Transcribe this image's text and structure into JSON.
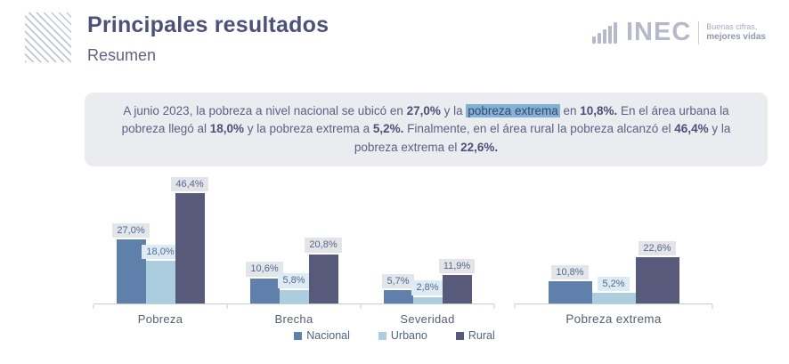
{
  "header": {
    "title": "Principales resultados",
    "subtitle": "Resumen",
    "logo": {
      "name": "INEC",
      "tagline_line1": "Buenas cifras,",
      "tagline_line2": "mejores vidas"
    }
  },
  "summary": {
    "segments": [
      {
        "text": "A junio 2023, la pobreza a nivel nacional se ubicó en ",
        "style": "normal"
      },
      {
        "text": "27,0%",
        "style": "bold"
      },
      {
        "text": " y la ",
        "style": "normal"
      },
      {
        "text": "pobreza extrema",
        "style": "highlight"
      },
      {
        "text": " en ",
        "style": "normal"
      },
      {
        "text": "10,8%.",
        "style": "bold"
      },
      {
        "text": " En el área urbana la pobreza llegó al ",
        "style": "normal"
      },
      {
        "text": "18,0%",
        "style": "bold"
      },
      {
        "text": " y la pobreza extrema a ",
        "style": "normal"
      },
      {
        "text": "5,2%.",
        "style": "bold"
      },
      {
        "text": " Finalmente, en el área rural la pobreza alcanzó el ",
        "style": "normal"
      },
      {
        "text": "46,4%",
        "style": "bold"
      },
      {
        "text": " y la pobreza extrema el ",
        "style": "normal"
      },
      {
        "text": "22,6%.",
        "style": "bold"
      }
    ]
  },
  "chart_data": {
    "type": "bar",
    "grid": false,
    "legend": [
      "Nacional",
      "Urbano",
      "Rural"
    ],
    "legend_position": "bottom",
    "value_format": "percent-comma-1dec",
    "charts": [
      {
        "name": "pobreza-brecha-severidad",
        "categories": [
          "Pobreza",
          "Brecha",
          "Severidad"
        ],
        "series": [
          {
            "name": "Nacional",
            "values": [
              27.0,
              10.6,
              5.7
            ]
          },
          {
            "name": "Urbano",
            "values": [
              18.0,
              5.8,
              2.8
            ]
          },
          {
            "name": "Rural",
            "values": [
              46.4,
              20.8,
              11.9
            ]
          }
        ],
        "ylim": [
          0,
          55
        ]
      },
      {
        "name": "pobreza-extrema",
        "categories": [
          "Pobreza extrema"
        ],
        "series": [
          {
            "name": "Nacional",
            "values": [
              10.8
            ]
          },
          {
            "name": "Urbano",
            "values": [
              5.2
            ]
          },
          {
            "name": "Rural",
            "values": [
              22.6
            ]
          }
        ],
        "ylim": [
          0,
          64
        ]
      }
    ]
  },
  "colors": {
    "nacional": "#5e80ab",
    "urbano": "#abcddd",
    "rural": "#585a7c",
    "label_bg_nacional": "#e2e5e9",
    "label_bg_urbano": "#ddebf4",
    "label_bg_rural": "#e3e3e8",
    "label_text": "#54688c",
    "highlight_bg": "#7fb2d5",
    "title_text": "#4d5179",
    "summary_bg": "#ebecf0",
    "summary_text": "#5c6087",
    "axis": "#c9cbd4",
    "logo": "#b6b9cb"
  }
}
